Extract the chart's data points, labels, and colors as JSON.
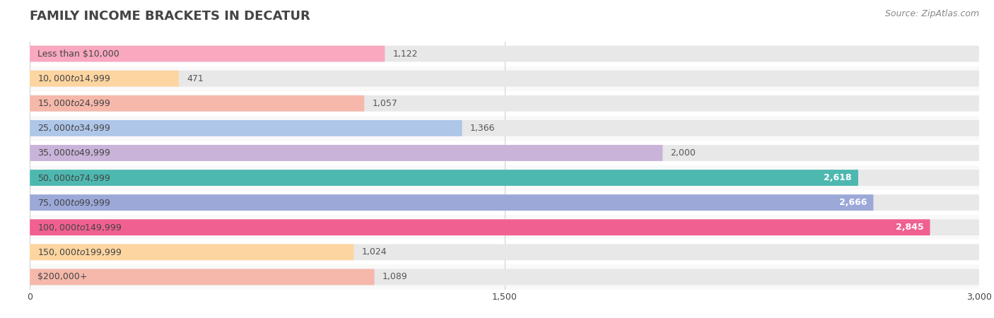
{
  "title": "FAMILY INCOME BRACKETS IN DECATUR",
  "source": "Source: ZipAtlas.com",
  "categories": [
    "Less than $10,000",
    "$10,000 to $14,999",
    "$15,000 to $24,999",
    "$25,000 to $34,999",
    "$35,000 to $49,999",
    "$50,000 to $74,999",
    "$75,000 to $99,999",
    "$100,000 to $149,999",
    "$150,000 to $199,999",
    "$200,000+"
  ],
  "values": [
    1122,
    471,
    1057,
    1366,
    2000,
    2618,
    2666,
    2845,
    1024,
    1089
  ],
  "bar_colors": [
    "#f9a8c0",
    "#fdd5a0",
    "#f5b8aa",
    "#aec6e8",
    "#c9b3d9",
    "#4db8b0",
    "#9ba8d8",
    "#f06090",
    "#fdd5a0",
    "#f5b8aa"
  ],
  "bg_color": "#ffffff",
  "bar_bg_color": "#e8e8e8",
  "row_bg_even": "#f9f9f9",
  "row_bg_odd": "#ffffff",
  "xlim": [
    0,
    3000
  ],
  "xticks": [
    0,
    1500,
    3000
  ],
  "title_color": "#444444",
  "label_color": "#444444",
  "value_color_dark": "#555555",
  "value_color_light": "#ffffff",
  "bar_height": 0.65,
  "font_size_title": 13,
  "font_size_labels": 9,
  "font_size_values": 9,
  "font_size_source": 9,
  "threshold_white": 2100
}
